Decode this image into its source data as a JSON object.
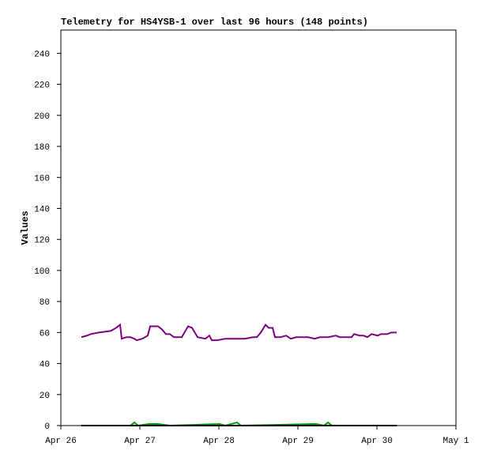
{
  "chart_data": {
    "type": "line",
    "title": "Telemetry for HS4YSB-1 over last 96 hours (148 points)",
    "y_label": "Values",
    "xlim": [
      0,
      5
    ],
    "xticks": [
      {
        "value": 0,
        "label": "Apr 26"
      },
      {
        "value": 1,
        "label": "Apr 27"
      },
      {
        "value": 2,
        "label": "Apr 28"
      },
      {
        "value": 3,
        "label": "Apr 29"
      },
      {
        "value": 4,
        "label": "Apr 30"
      },
      {
        "value": 5,
        "label": "May 1"
      }
    ],
    "ylim": [
      0,
      255
    ],
    "yticks": [
      0,
      20,
      40,
      60,
      80,
      100,
      120,
      140,
      160,
      180,
      200,
      220,
      240
    ],
    "grid": false,
    "series": [
      {
        "color": "#800080",
        "x": [
          0.26,
          0.33,
          0.38,
          0.48,
          0.63,
          0.7,
          0.75,
          0.77,
          0.83,
          0.88,
          0.93,
          0.96,
          1.03,
          1.1,
          1.13,
          1.23,
          1.28,
          1.33,
          1.38,
          1.43,
          1.53,
          1.61,
          1.66,
          1.73,
          1.83,
          1.88,
          1.91,
          1.98,
          2.08,
          2.33,
          2.43,
          2.48,
          2.53,
          2.59,
          2.63,
          2.68,
          2.71,
          2.78,
          2.85,
          2.91,
          2.98,
          3.13,
          3.21,
          3.28,
          3.38,
          3.48,
          3.53,
          3.68,
          3.71,
          3.78,
          3.83,
          3.88,
          3.93,
          4.01,
          4.05,
          4.13,
          4.18,
          4.25
        ],
        "values": [
          57,
          58,
          59,
          60,
          61,
          63,
          65,
          56,
          57,
          57,
          56,
          55,
          56,
          58,
          64,
          64,
          62,
          59,
          59,
          57,
          57,
          64,
          63,
          57,
          56,
          58,
          55,
          55,
          56,
          56,
          57,
          57,
          60,
          65,
          63,
          63,
          57,
          57,
          58,
          56,
          57,
          57,
          56,
          57,
          57,
          58,
          57,
          57,
          59,
          58,
          58,
          57,
          59,
          58,
          59,
          59,
          60,
          60
        ]
      },
      {
        "color": "#00a000",
        "x": [
          0.26,
          0.88,
          0.93,
          0.98,
          1.11,
          1.23,
          1.38,
          2.01,
          2.08,
          2.23,
          2.28,
          3.18,
          3.23,
          3.33,
          3.38,
          3.43,
          4.25
        ],
        "values": [
          0,
          0,
          2,
          0,
          1,
          1,
          0,
          1,
          0,
          2,
          0,
          1,
          1,
          0,
          2,
          0,
          0
        ]
      },
      {
        "color": "#000000",
        "x": [
          0.26,
          4.25
        ],
        "values": [
          0,
          0
        ]
      }
    ]
  }
}
